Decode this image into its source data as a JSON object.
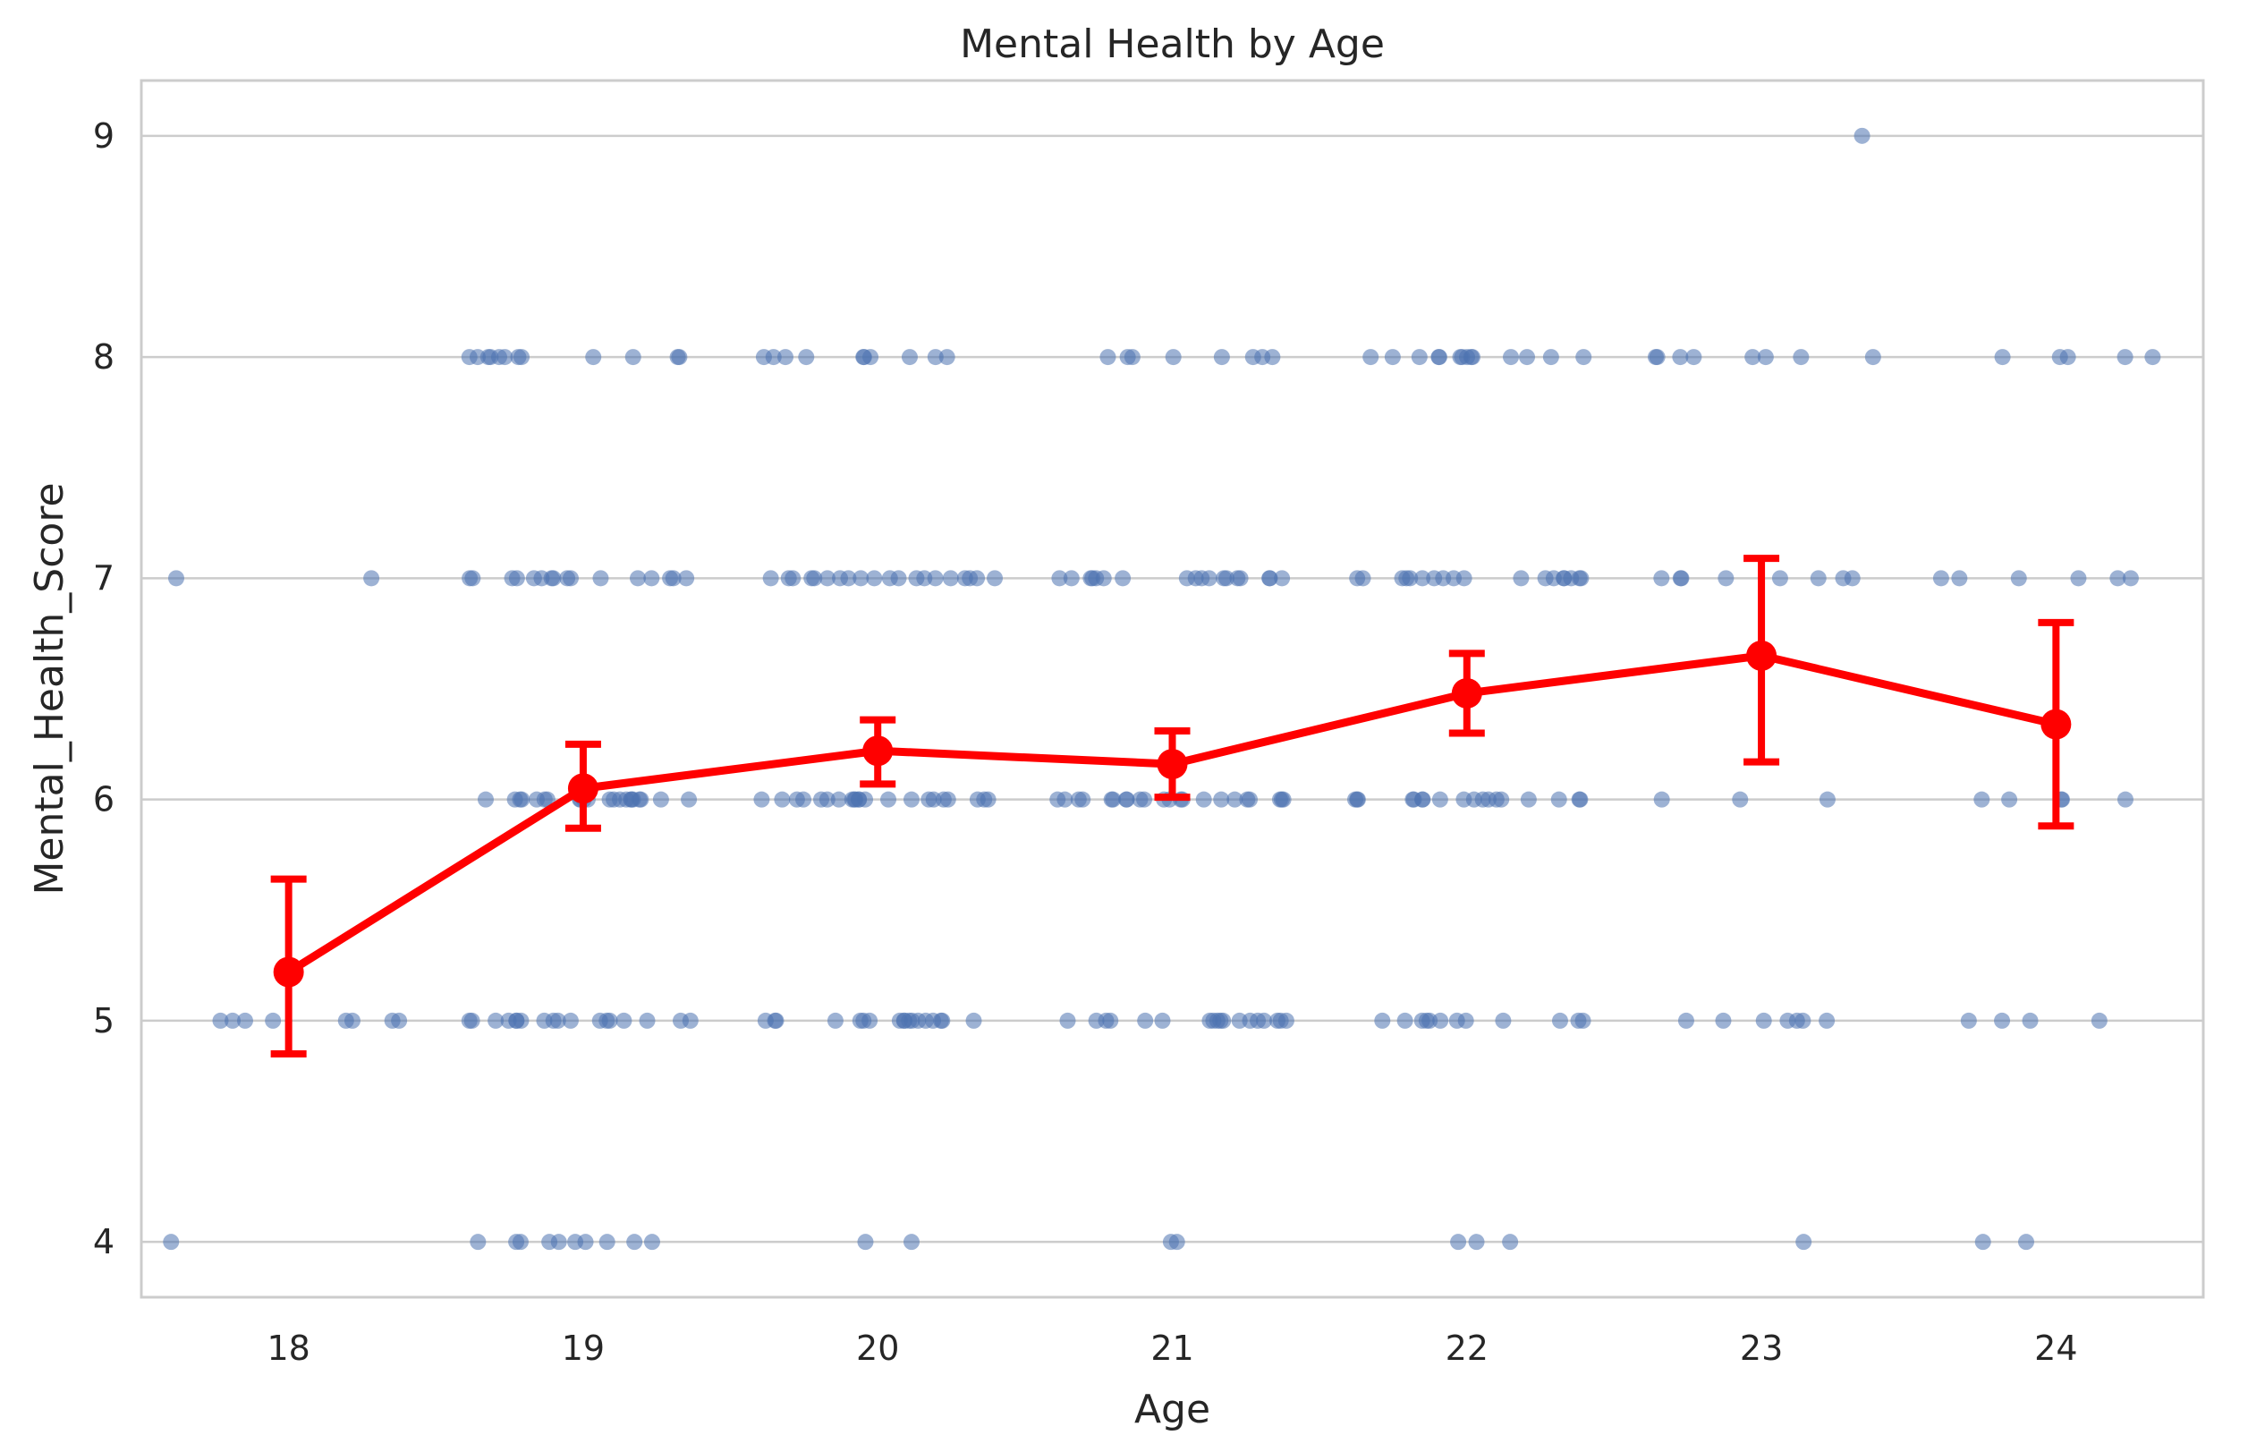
{
  "chart_data": {
    "type": "scatter",
    "title": "Mental Health by Age",
    "xlabel": "Age",
    "ylabel": "Mental_Health_Score",
    "categories": [
      "18",
      "19",
      "20",
      "21",
      "22",
      "23",
      "24"
    ],
    "yticks": [
      "4",
      "5",
      "6",
      "7",
      "8",
      "9"
    ],
    "ylim": [
      3.75,
      9.25
    ],
    "grid": "horizontal",
    "colors": {
      "points": "#4C72B0",
      "mean_line": "#FF0000",
      "grid": "#CCCCCC",
      "frame": "#CCCCCC"
    },
    "scatter_points": [
      {
        "category": "18",
        "values": [
          4,
          5,
          5,
          5,
          5,
          5,
          5,
          5,
          5,
          7,
          7
        ]
      },
      {
        "category": "19",
        "values": [
          4,
          4,
          4,
          4,
          4,
          4,
          4,
          4,
          4,
          4,
          5,
          5,
          5,
          5,
          5,
          5,
          5,
          5,
          5,
          5,
          5,
          5,
          5,
          5,
          5,
          5,
          5,
          5,
          6,
          6,
          6,
          6,
          6,
          6,
          6,
          6,
          6,
          6,
          6,
          6,
          6,
          6,
          6,
          6,
          6,
          6,
          6,
          6,
          6,
          6,
          7,
          7,
          7,
          7,
          7,
          7,
          7,
          7,
          7,
          7,
          7,
          7,
          7,
          7,
          7,
          7,
          8,
          8,
          8,
          8,
          8,
          8,
          8,
          8,
          8,
          8,
          8,
          8
        ]
      },
      {
        "category": "20",
        "values": [
          4,
          4,
          5,
          5,
          5,
          5,
          5,
          5,
          5,
          5,
          5,
          5,
          5,
          5,
          5,
          5,
          5,
          5,
          5,
          5,
          6,
          6,
          6,
          6,
          6,
          6,
          6,
          6,
          6,
          6,
          6,
          6,
          6,
          6,
          6,
          6,
          6,
          6,
          6,
          6,
          6,
          6,
          7,
          7,
          7,
          7,
          7,
          7,
          7,
          7,
          7,
          7,
          7,
          7,
          7,
          7,
          7,
          7,
          7,
          7,
          7,
          7,
          8,
          8,
          8,
          8,
          8,
          8,
          8,
          8,
          8,
          8
        ]
      },
      {
        "category": "21",
        "values": [
          4,
          4,
          5,
          5,
          5,
          5,
          5,
          5,
          5,
          5,
          5,
          5,
          5,
          5,
          5,
          5,
          5,
          5,
          5,
          5,
          6,
          6,
          6,
          6,
          6,
          6,
          6,
          6,
          6,
          6,
          6,
          6,
          6,
          6,
          6,
          6,
          6,
          6,
          6,
          6,
          6,
          6,
          7,
          7,
          7,
          7,
          7,
          7,
          7,
          7,
          7,
          7,
          7,
          7,
          7,
          7,
          7,
          7,
          7,
          7,
          8,
          8,
          8,
          8,
          8,
          8,
          8,
          8
        ]
      },
      {
        "category": "22",
        "values": [
          4,
          4,
          4,
          5,
          5,
          5,
          5,
          5,
          5,
          5,
          5,
          5,
          5,
          5,
          5,
          6,
          6,
          6,
          6,
          6,
          6,
          6,
          6,
          6,
          6,
          6,
          6,
          6,
          6,
          6,
          6,
          6,
          6,
          7,
          7,
          7,
          7,
          7,
          7,
          7,
          7,
          7,
          7,
          7,
          7,
          7,
          7,
          7,
          7,
          7,
          7,
          8,
          8,
          8,
          8,
          8,
          8,
          8,
          8,
          8,
          8,
          8,
          8,
          8,
          8
        ]
      },
      {
        "category": "23",
        "values": [
          4,
          5,
          5,
          5,
          5,
          5,
          5,
          5,
          6,
          6,
          6,
          7,
          7,
          7,
          7,
          7,
          7,
          7,
          7,
          8,
          8,
          8,
          8,
          8,
          8,
          8,
          8,
          9
        ]
      },
      {
        "category": "24",
        "values": [
          4,
          4,
          5,
          5,
          5,
          5,
          6,
          6,
          6,
          6,
          6,
          7,
          7,
          7,
          7,
          7,
          7,
          8,
          8,
          8,
          8,
          8
        ]
      }
    ],
    "series": [
      {
        "type": "pointplot",
        "mean": [
          5.22,
          6.05,
          6.22,
          6.16,
          6.48,
          6.65,
          6.34
        ],
        "ci_low": [
          4.85,
          5.87,
          6.07,
          6.01,
          6.3,
          6.17,
          5.88
        ],
        "ci_high": [
          5.64,
          6.25,
          6.36,
          6.31,
          6.66,
          7.09,
          6.8
        ]
      }
    ]
  }
}
